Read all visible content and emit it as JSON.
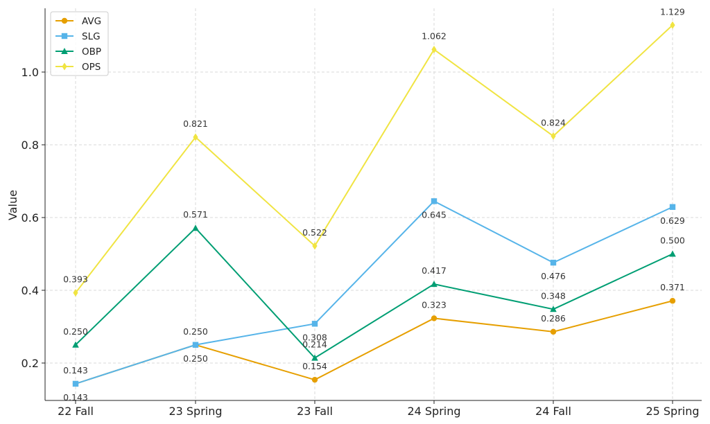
{
  "chart_data": {
    "type": "line",
    "title": "",
    "xlabel": "",
    "ylabel": "Value",
    "categories": [
      "22 Fall",
      "23 Spring",
      "23 Fall",
      "24 Spring",
      "24 Fall",
      "25 Spring"
    ],
    "ylim": [
      0.1,
      1.17
    ],
    "yticks": [
      "0.2",
      "0.4",
      "0.6",
      "0.8",
      "1.0"
    ],
    "grid": true,
    "legend_position": "top-left",
    "series": [
      {
        "name": "AVG",
        "color": "#E69F00",
        "marker": "circle",
        "values": [
          0.143,
          0.25,
          0.154,
          0.323,
          0.286,
          0.371
        ],
        "labels": [
          "0.143",
          "0.250",
          "0.154",
          "0.323",
          "0.286",
          "0.371"
        ],
        "label_side": [
          "below",
          "below",
          "above",
          "above",
          "above",
          "above"
        ]
      },
      {
        "name": "SLG",
        "color": "#56B4E9",
        "marker": "square",
        "values": [
          0.143,
          0.25,
          0.308,
          0.645,
          0.476,
          0.629
        ],
        "labels": [
          "0.143",
          "0.250",
          "0.308",
          "0.645",
          "0.476",
          "0.629"
        ],
        "label_side": [
          "above",
          "above",
          "below",
          "below",
          "below",
          "below"
        ]
      },
      {
        "name": "OBP",
        "color": "#009E73",
        "marker": "triangle",
        "values": [
          0.25,
          0.571,
          0.214,
          0.417,
          0.348,
          0.5
        ],
        "labels": [
          "0.250",
          "0.571",
          "0.214",
          "0.417",
          "0.348",
          "0.500"
        ],
        "label_side": [
          "above",
          "above",
          "above",
          "above",
          "above",
          "above"
        ]
      },
      {
        "name": "OPS",
        "color": "#F0E442",
        "marker": "diamond",
        "values": [
          0.393,
          0.821,
          0.522,
          1.062,
          0.824,
          1.129
        ],
        "labels": [
          "0.393",
          "0.821",
          "0.522",
          "1.062",
          "0.824",
          "1.129"
        ],
        "label_side": [
          "above",
          "above",
          "above",
          "above",
          "above",
          "above"
        ]
      }
    ]
  }
}
